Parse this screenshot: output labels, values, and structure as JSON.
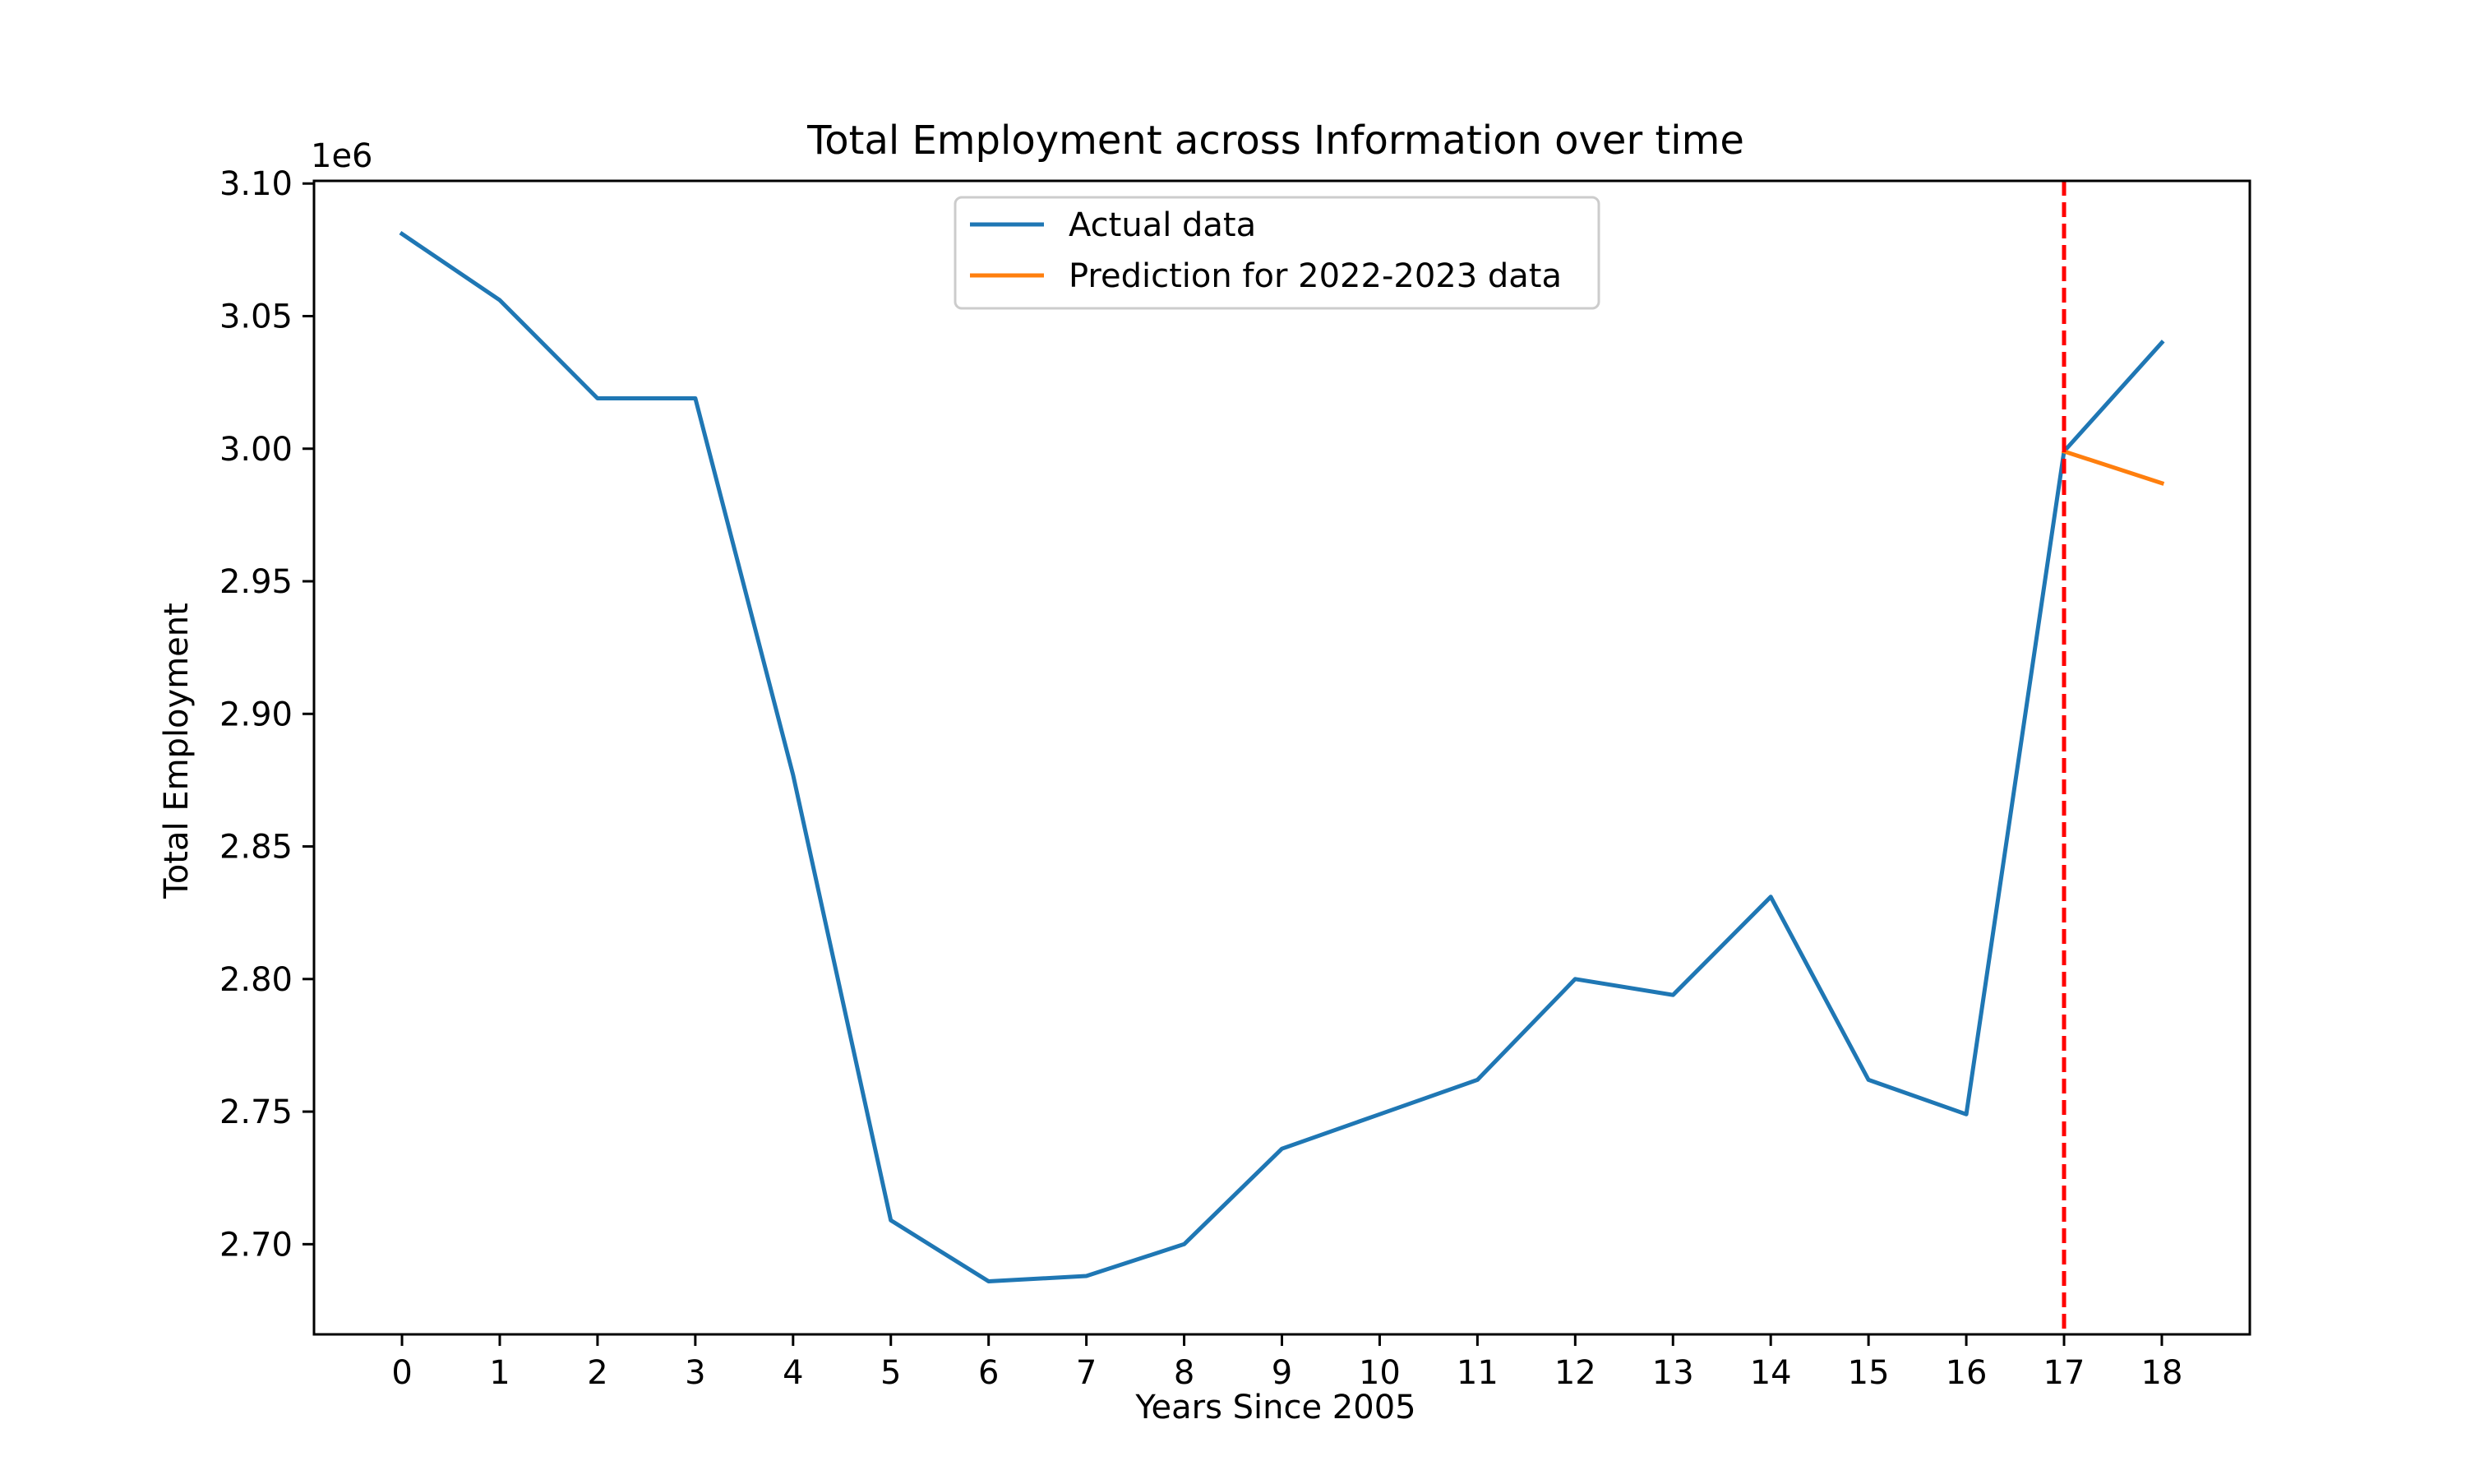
{
  "chart_data": {
    "type": "line",
    "title": "Total Employment across Information over time",
    "xlabel": "Years Since 2005",
    "ylabel": "Total Employment",
    "y_offset_label": "1e6",
    "xlim": [
      -0.9,
      18.9
    ],
    "ylim": [
      2.666,
      3.101
    ],
    "x_ticks": [
      0,
      1,
      2,
      3,
      4,
      5,
      6,
      7,
      8,
      9,
      10,
      11,
      12,
      13,
      14,
      15,
      16,
      17,
      18
    ],
    "y_ticks": [
      2.7,
      2.75,
      2.8,
      2.85,
      2.9,
      2.95,
      3.0,
      3.05,
      3.1
    ],
    "y_tick_labels": [
      "2.70",
      "2.75",
      "2.80",
      "2.85",
      "2.90",
      "2.95",
      "3.00",
      "3.05",
      "3.10"
    ],
    "grid": false,
    "legend_position": "upper-center",
    "series": [
      {
        "name": "Actual data",
        "color": "#1f77b4",
        "x": [
          0,
          1,
          2,
          3,
          4,
          5,
          6,
          7,
          8,
          9,
          10,
          11,
          12,
          13,
          14,
          15,
          16,
          17,
          18
        ],
        "y": [
          3.081,
          3.056,
          3.019,
          3.019,
          2.877,
          2.709,
          2.686,
          2.688,
          2.7,
          2.736,
          2.749,
          2.762,
          2.8,
          2.794,
          2.831,
          2.762,
          2.749,
          2.999,
          3.04
        ]
      },
      {
        "name": "Prediction for 2022-2023 data",
        "color": "#ff7f0e",
        "x": [
          17,
          18
        ],
        "y": [
          2.999,
          2.987
        ]
      }
    ],
    "vline": {
      "x": 17,
      "color": "#ff0000",
      "style": "dashed"
    }
  }
}
